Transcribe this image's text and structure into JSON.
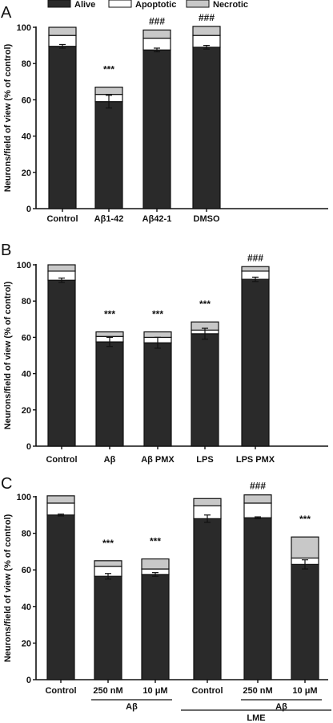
{
  "legend": {
    "items": [
      {
        "label": "Alive",
        "color": "#2a2a2a"
      },
      {
        "label": "Apoptotic",
        "color": "#ffffff"
      },
      {
        "label": "Necrotic",
        "color": "#c8c8c8"
      }
    ]
  },
  "chart_data": [
    {
      "panel": "A",
      "type": "bar",
      "stacked": true,
      "ylabel": "Neurons/field of view (% of control)",
      "ylim": [
        0,
        100
      ],
      "yticks": [
        0,
        20,
        40,
        60,
        80,
        100
      ],
      "categories": [
        "Control",
        "Aβ1-42",
        "Aβ42-1",
        "DMSO"
      ],
      "series": [
        {
          "name": "Alive",
          "values": [
            89.5,
            59,
            87.5,
            89
          ]
        },
        {
          "name": "Apoptotic",
          "values": [
            6,
            4,
            6.5,
            6.5
          ]
        },
        {
          "name": "Necrotic",
          "values": [
            4.5,
            4,
            4.5,
            5
          ]
        }
      ],
      "error": [
        1,
        3.5,
        1,
        1
      ],
      "significance": [
        "",
        "***",
        "###",
        "###"
      ],
      "group_labels": []
    },
    {
      "panel": "B",
      "type": "bar",
      "stacked": true,
      "ylabel": "Neurons/field of view (% of control)",
      "ylim": [
        0,
        100
      ],
      "yticks": [
        0,
        20,
        40,
        60,
        80,
        100
      ],
      "categories": [
        "Control",
        "Aβ",
        "Aβ PMX",
        "LPS",
        "LPS PMX"
      ],
      "series": [
        {
          "name": "Alive",
          "values": [
            91.5,
            57.5,
            57,
            62,
            92
          ]
        },
        {
          "name": "Apoptotic",
          "values": [
            5,
            3,
            3,
            2,
            4.5
          ]
        },
        {
          "name": "Necrotic",
          "values": [
            3.5,
            2.5,
            3,
            4.5,
            2.5
          ]
        }
      ],
      "error": [
        1.2,
        2.5,
        3,
        3,
        1.2
      ],
      "significance": [
        "",
        "***",
        "***",
        "***",
        "###"
      ],
      "group_labels": []
    },
    {
      "panel": "C",
      "type": "bar",
      "stacked": true,
      "ylabel": "Neurons/field of view (% of control)",
      "ylim": [
        0,
        100
      ],
      "yticks": [
        0,
        20,
        40,
        60,
        80,
        100
      ],
      "categories": [
        "Control",
        "250 nM",
        "10 μM",
        "Control",
        "250 nM",
        "10 μM"
      ],
      "series": [
        {
          "name": "Alive",
          "values": [
            90,
            56.5,
            57.5,
            88,
            88.5,
            63
          ]
        },
        {
          "name": "Apoptotic",
          "values": [
            6.5,
            5.5,
            3,
            7,
            8,
            3.5
          ]
        },
        {
          "name": "Necrotic",
          "values": [
            4,
            3,
            5.5,
            4,
            4.5,
            11.5
          ]
        }
      ],
      "error": [
        0.5,
        1.5,
        1,
        2,
        0.5,
        2.5
      ],
      "significance": [
        "",
        "***",
        "***",
        "",
        "###",
        "***"
      ],
      "group_labels": [
        {
          "label": "Aβ",
          "from": 1,
          "to": 2,
          "level": 1
        },
        {
          "label": "Aβ",
          "from": 4,
          "to": 5,
          "level": 1
        },
        {
          "label": "LME",
          "from": 3,
          "to": 5,
          "level": 2
        }
      ]
    }
  ]
}
